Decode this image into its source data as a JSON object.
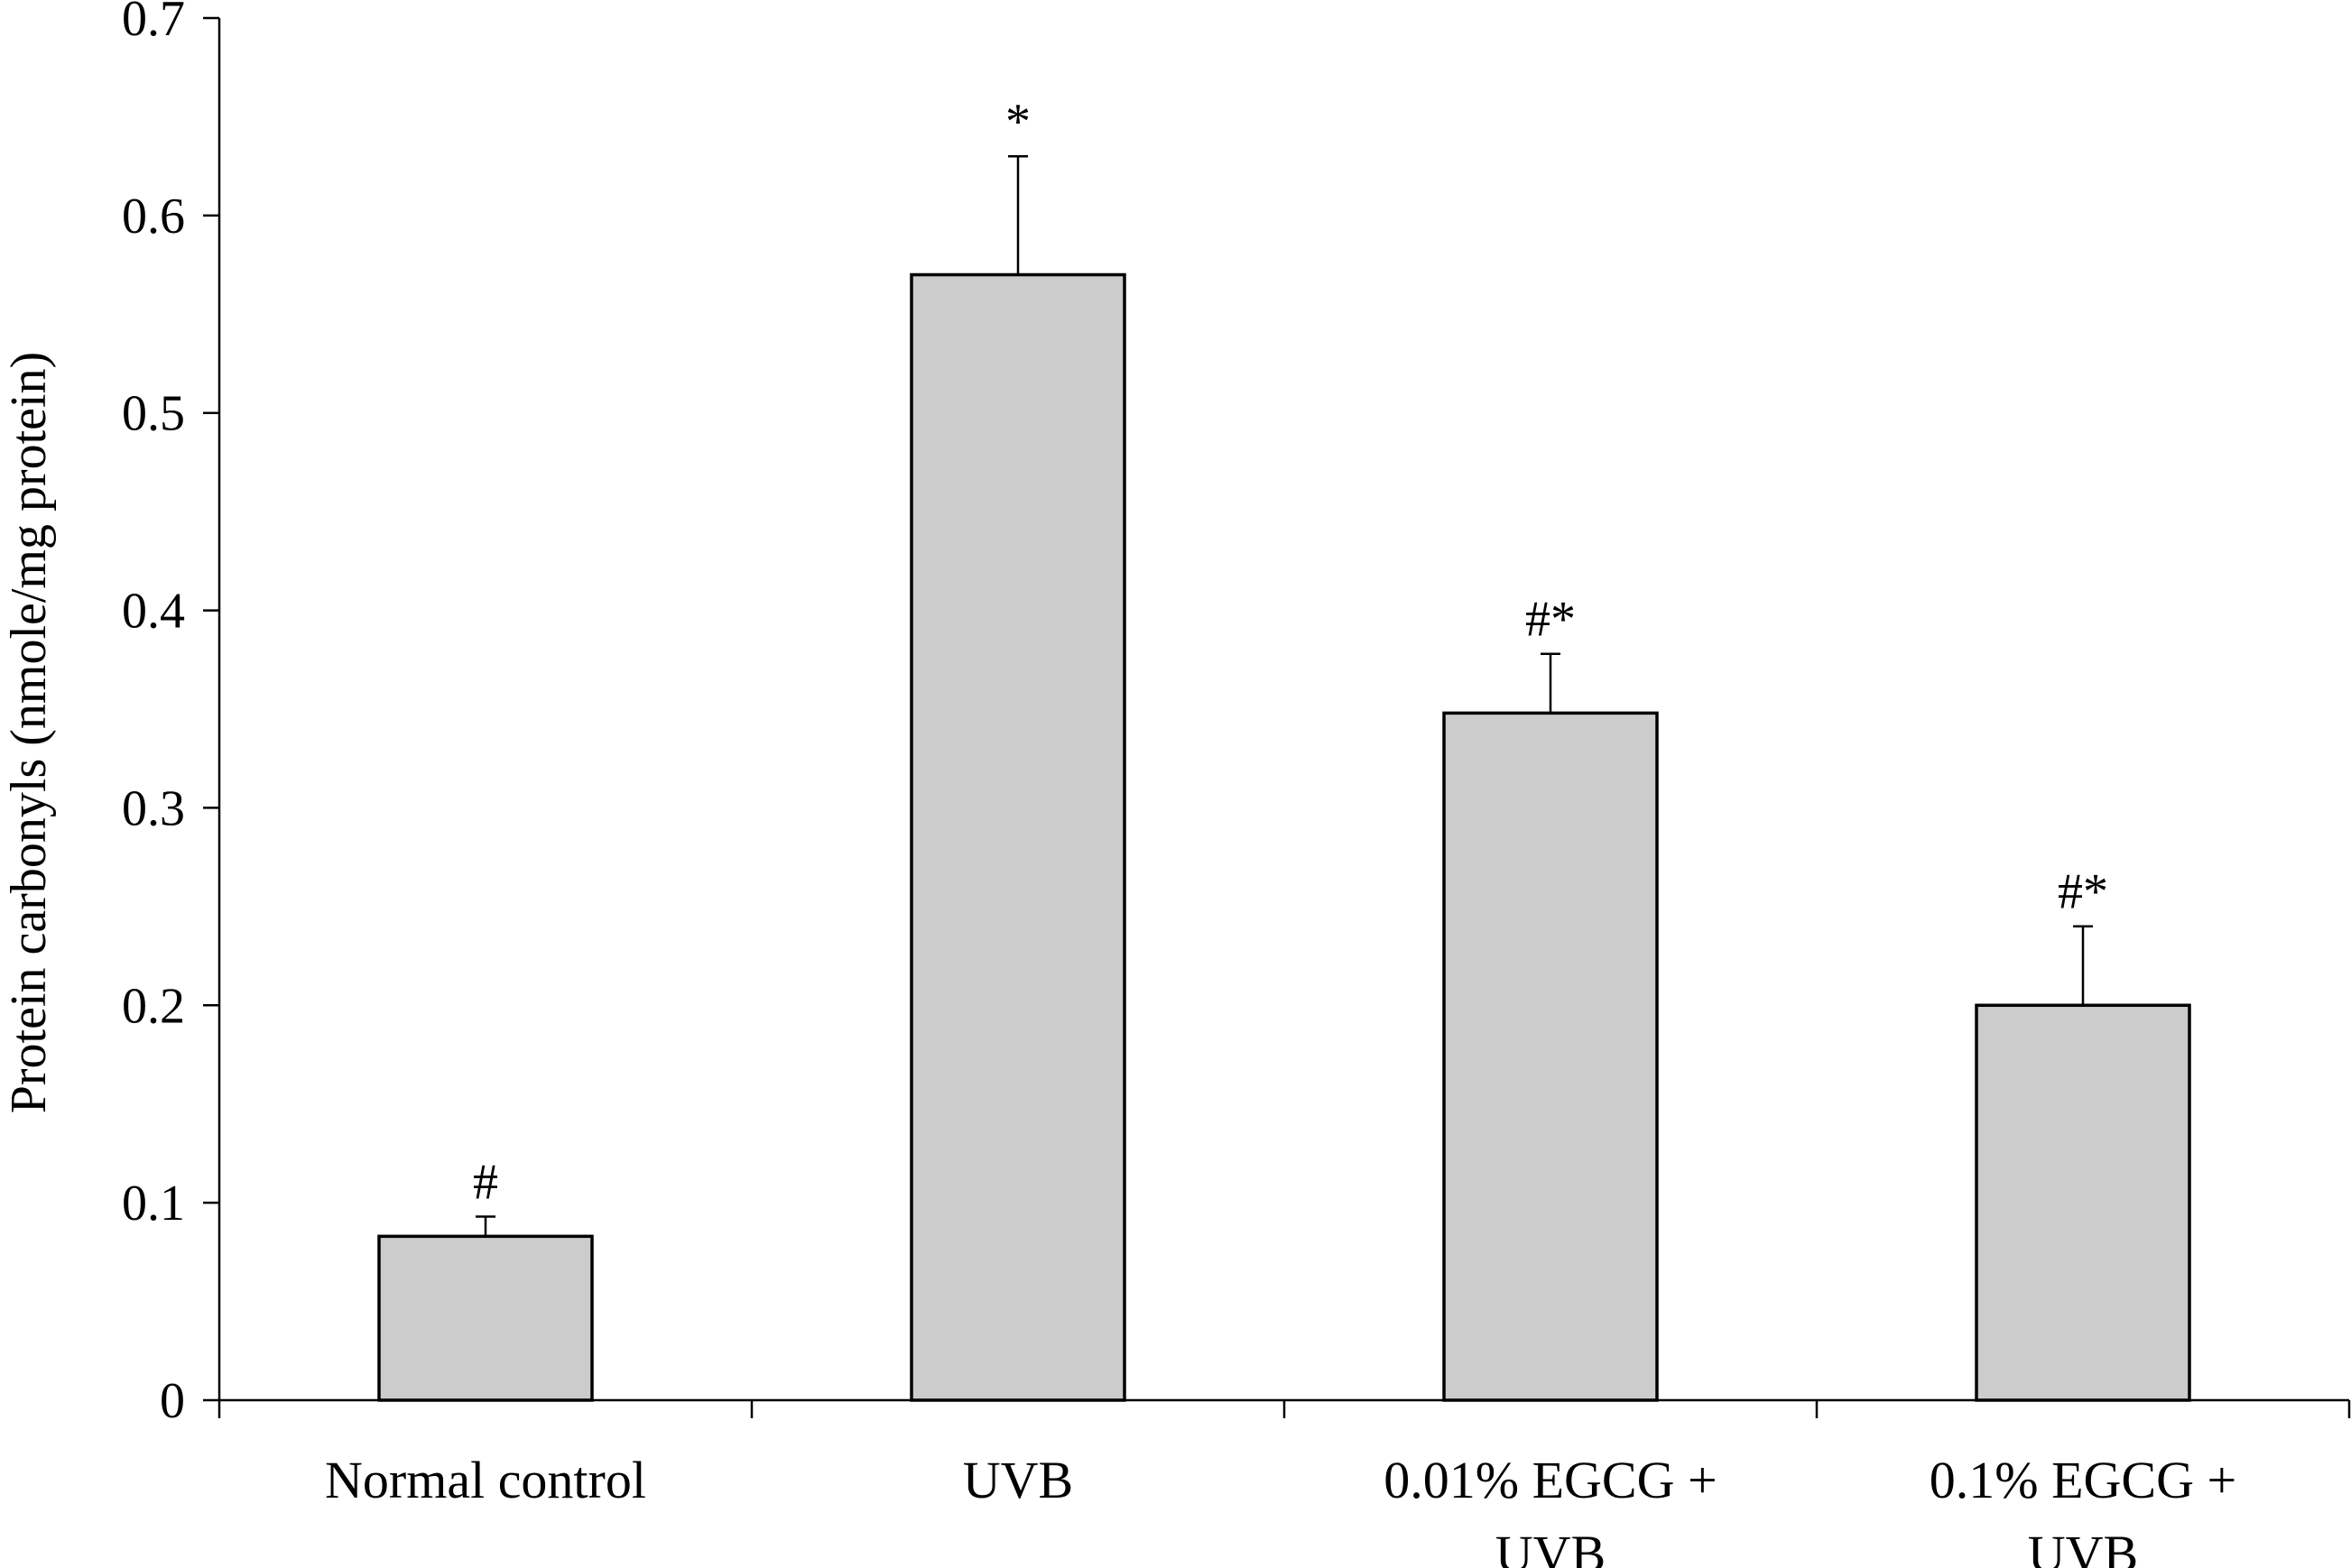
{
  "chart_data": {
    "type": "bar",
    "title": "",
    "xlabel": "",
    "ylabel": "Protein carbonyls (nmole/mg protein)",
    "ylim": [
      0,
      0.7
    ],
    "yticks": [
      "0",
      "0.1",
      "0.2",
      "0.3",
      "0.4",
      "0.5",
      "0.6",
      "0.7"
    ],
    "categories": [
      [
        "Normal control"
      ],
      [
        "UVB"
      ],
      [
        "0.01% EGCG +",
        "UVB"
      ],
      [
        "0.1% EGCG +",
        "UVB"
      ]
    ],
    "values": [
      0.083,
      0.57,
      0.348,
      0.2
    ],
    "error_upper": [
      0.01,
      0.06,
      0.03,
      0.04
    ],
    "annotations": [
      "#",
      "*",
      "#*",
      "#*"
    ],
    "grid": false,
    "legend": "none",
    "bar_color": "#cccccc",
    "bar_edge_color": "#000000"
  }
}
